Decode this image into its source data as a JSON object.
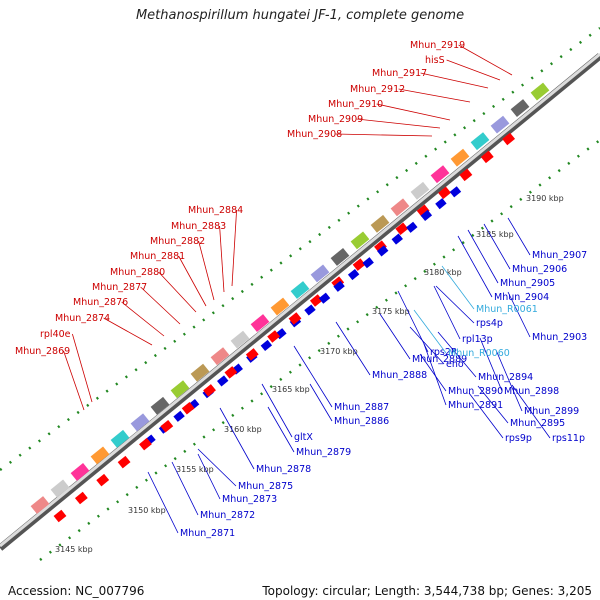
{
  "title": "Methanospirillum hungatei JF-1, complete genome",
  "footer": {
    "accession": "Accession: NC_007796",
    "topology": "Topology: circular; Length: 3,544,738 bp; Genes: 3,205"
  },
  "colors": {
    "forward_label": "#cc0000",
    "reverse_label": "#0000cc",
    "rna_label": "#33aadd",
    "tick": "#228822",
    "forward_gene": "#ff0000",
    "reverse_gene": "#0000dd"
  },
  "scale_labels": [
    "3145 kbp",
    "3150 kbp",
    "3155 kbp",
    "3160 kbp",
    "3165 kbp",
    "3170 kbp",
    "3175 kbp",
    "3180 kbp",
    "3185 kbp",
    "3190 kbp"
  ],
  "forward_labels": [
    "Mhun_2919",
    "hisS",
    "Mhun_2917",
    "Mhun_2912",
    "Mhun_2910",
    "Mhun_2909",
    "Mhun_2908",
    "Mhun_2884",
    "Mhun_2883",
    "Mhun_2882",
    "Mhun_2881",
    "Mhun_2880",
    "Mhun_2877",
    "Mhun_2876",
    "Mhun_2874",
    "rpl40e",
    "Mhun_2869"
  ],
  "reverse_labels": [
    "Mhun_2907",
    "Mhun_2906",
    "Mhun_2905",
    "Mhun_2904",
    "rps4p",
    "Mhun_2903",
    "rpl13p",
    "rps2P",
    "eno",
    "Mhun_2894",
    "Mhun_2898",
    "Mhun_2899",
    "Mhun_2895",
    "rps9p",
    "rps11p",
    "Mhun_2891",
    "Mhun_2890",
    "Mhun_2889",
    "Mhun_2888",
    "Mhun_2887",
    "Mhun_2886",
    "Mhun_2879",
    "gltX",
    "Mhun_2878",
    "Mhun_2875",
    "Mhun_2873",
    "Mhun_2872",
    "Mhun_2871"
  ],
  "rna_labels": [
    "Mhun_R0061",
    "Mhun_R0060"
  ]
}
